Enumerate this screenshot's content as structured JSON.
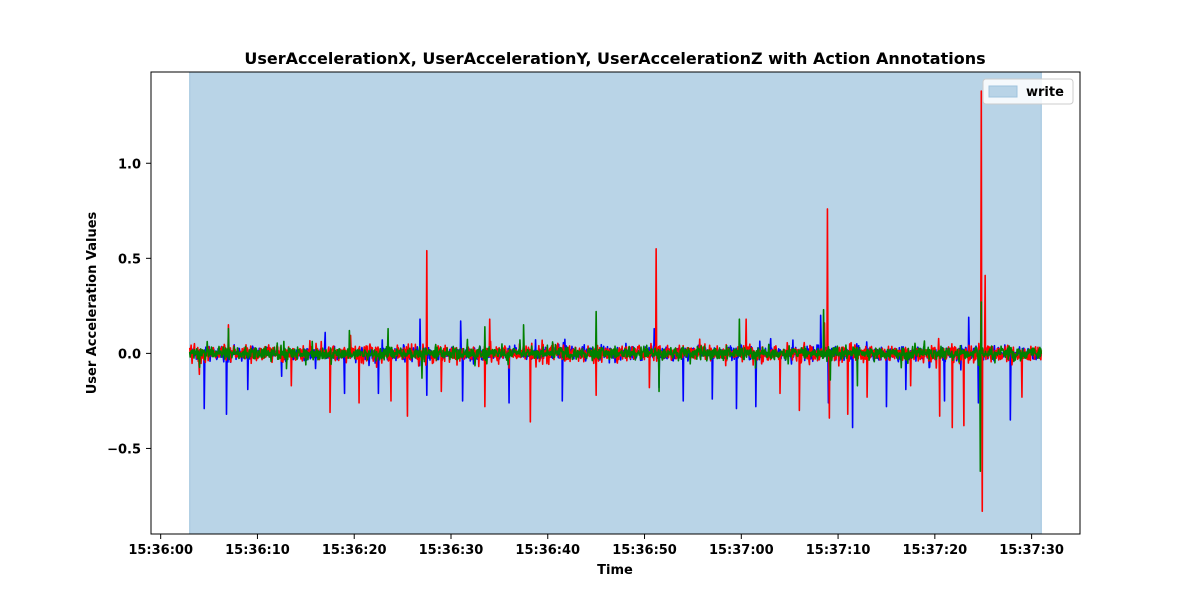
{
  "chart_data": {
    "type": "line",
    "title": "UserAccelerationX, UserAccelerationY, UserAccelerationZ with Action Annotations",
    "xlabel": "Time",
    "ylabel": "User Acceleration Values",
    "x_range": [
      "15:36:03",
      "15:37:31"
    ],
    "xlim": [
      "15:35:59",
      "15:37:35"
    ],
    "ylim": [
      -0.95,
      1.48
    ],
    "x_ticks": [
      "15:36:00",
      "15:36:10",
      "15:36:20",
      "15:36:30",
      "15:36:40",
      "15:36:50",
      "15:37:00",
      "15:37:10",
      "15:37:20",
      "15:37:30"
    ],
    "y_ticks": [
      -0.5,
      0.0,
      0.5,
      1.0
    ],
    "y_tick_labels": [
      "−0.5",
      "0.0",
      "0.5",
      "1.0"
    ],
    "grid": false,
    "legend_position": "top-right",
    "annotations": [
      {
        "label": "write",
        "start": "15:36:03",
        "end": "15:37:31",
        "color": "#b9d4e7",
        "edge_color": "#9ec3de"
      }
    ],
    "series": [
      {
        "color": "#0000ff",
        "baseline": 0.0,
        "noise_amplitude": 0.05,
        "spikes": [
          [
            "15:36:04.5",
            -0.29
          ],
          [
            "15:36:06.8",
            -0.32
          ],
          [
            "15:36:09",
            -0.19
          ],
          [
            "15:36:12.5",
            -0.12
          ],
          [
            "15:36:17",
            0.11
          ],
          [
            "15:36:19",
            -0.21
          ],
          [
            "15:36:22.5",
            -0.21
          ],
          [
            "15:36:26.8",
            0.18
          ],
          [
            "15:36:27.5",
            -0.22
          ],
          [
            "15:36:31",
            0.17
          ],
          [
            "15:36:31.2",
            -0.25
          ],
          [
            "15:36:36",
            -0.26
          ],
          [
            "15:36:41.5",
            -0.25
          ],
          [
            "15:36:51",
            0.13
          ],
          [
            "15:36:51.5",
            -0.18
          ],
          [
            "15:36:54",
            -0.25
          ],
          [
            "15:36:57",
            -0.24
          ],
          [
            "15:36:59.5",
            -0.29
          ],
          [
            "15:37:01.5",
            -0.28
          ],
          [
            "15:37:08.2",
            0.2
          ],
          [
            "15:37:09",
            -0.26
          ],
          [
            "15:37:11.5",
            -0.39
          ],
          [
            "15:37:15",
            -0.28
          ],
          [
            "15:37:17",
            -0.19
          ],
          [
            "15:37:21",
            -0.25
          ],
          [
            "15:37:23.5",
            0.19
          ],
          [
            "15:37:24.5",
            -0.26
          ],
          [
            "15:37:27.8",
            0.23
          ],
          [
            "15:37:27.8",
            -0.35
          ]
        ]
      },
      {
        "color": "#ff0000",
        "baseline": 0.0,
        "noise_amplitude": 0.06,
        "spikes": [
          [
            "15:36:04",
            -0.11
          ],
          [
            "15:36:07",
            0.15
          ],
          [
            "15:36:13.5",
            -0.17
          ],
          [
            "15:36:17.5",
            -0.31
          ],
          [
            "15:36:20.5",
            -0.26
          ],
          [
            "15:36:23.8",
            -0.25
          ],
          [
            "15:36:25.5",
            -0.33
          ],
          [
            "15:36:27.5",
            0.54
          ],
          [
            "15:36:29",
            -0.2
          ],
          [
            "15:36:33.5",
            -0.28
          ],
          [
            "15:36:34",
            0.18
          ],
          [
            "15:36:38.2",
            -0.36
          ],
          [
            "15:36:45",
            -0.22
          ],
          [
            "15:36:50.5",
            -0.18
          ],
          [
            "15:36:51.2",
            0.55
          ],
          [
            "15:37:00.5",
            0.18
          ],
          [
            "15:37:04",
            -0.21
          ],
          [
            "15:37:06",
            -0.3
          ],
          [
            "15:37:08.6",
            0.16
          ],
          [
            "15:37:08.9",
            0.76
          ],
          [
            "15:37:09.1",
            -0.34
          ],
          [
            "15:37:11",
            -0.32
          ],
          [
            "15:37:13",
            -0.23
          ],
          [
            "15:37:17.5",
            -0.17
          ],
          [
            "15:37:20.5",
            -0.33
          ],
          [
            "15:37:21.8",
            -0.39
          ],
          [
            "15:37:23",
            -0.38
          ],
          [
            "15:37:24.8",
            1.38
          ],
          [
            "15:37:24.9",
            -0.83
          ],
          [
            "15:37:25.2",
            0.41
          ],
          [
            "15:37:29",
            -0.23
          ]
        ]
      },
      {
        "color": "#008000",
        "baseline": 0.0,
        "noise_amplitude": 0.045,
        "spikes": [
          [
            "15:36:07",
            0.13
          ],
          [
            "15:36:13",
            -0.08
          ],
          [
            "15:36:15",
            -0.06
          ],
          [
            "15:36:19.5",
            0.12
          ],
          [
            "15:36:23.5",
            0.13
          ],
          [
            "15:36:27",
            -0.13
          ],
          [
            "15:36:33.5",
            0.14
          ],
          [
            "15:36:37.5",
            0.15
          ],
          [
            "15:36:45",
            0.22
          ],
          [
            "15:36:51.5",
            -0.2
          ],
          [
            "15:36:59.8",
            0.18
          ],
          [
            "15:37:08.5",
            0.23
          ],
          [
            "15:37:09.2",
            -0.14
          ],
          [
            "15:37:12",
            -0.17
          ],
          [
            "15:37:24.7",
            -0.62
          ],
          [
            "15:37:24.8",
            0.27
          ]
        ]
      }
    ]
  }
}
